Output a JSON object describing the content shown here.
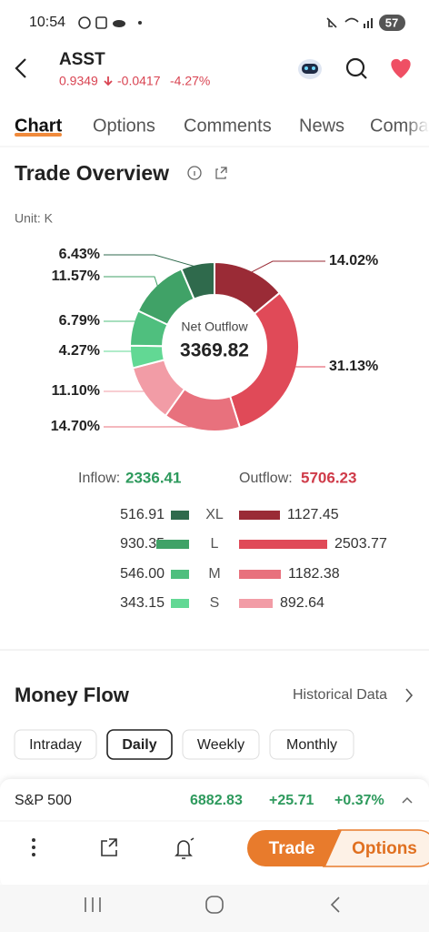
{
  "status_bar": {
    "time": "10:54",
    "battery": "57"
  },
  "header": {
    "symbol": "ASST",
    "price": "0.9349",
    "change": "-0.0417",
    "change_pct": "-4.27%"
  },
  "tabs": [
    "Chart",
    "Options",
    "Comments",
    "News",
    "Compa"
  ],
  "trade_overview": {
    "title": "Trade Overview",
    "unit": "Unit: K",
    "inflow_label": "Inflow:",
    "inflow_total": "2336.41",
    "outflow_label": "Outflow:",
    "outflow_total": "5706.23",
    "sizes": [
      "XL",
      "L",
      "M",
      "S"
    ],
    "inflow": [
      "516.91",
      "930.35",
      "546.00",
      "343.15"
    ],
    "outflow": [
      "1127.45",
      "2503.77",
      "1182.38",
      "892.64"
    ]
  },
  "chart_data": {
    "type": "donut",
    "center_label": "Net Outflow",
    "center_value": 3369.82,
    "values": [
      14.02,
      31.13,
      14.7,
      11.1,
      4.27,
      6.79,
      11.57,
      6.43
    ],
    "value_labels": [
      "14.02%",
      "31.13%",
      "14.70%",
      "11.10%",
      "4.27%",
      "6.79%",
      "11.57%",
      "6.43%"
    ],
    "colors": [
      "#9a2b36",
      "#e04a58",
      "#e8717d",
      "#f29ca6",
      "#62d894",
      "#4fbf7e",
      "#40a267",
      "#2f6a4c"
    ]
  },
  "money_flow": {
    "title": "Money Flow",
    "link": "Historical Data",
    "periods": [
      "Intraday",
      "Daily",
      "Weekly",
      "Monthly"
    ],
    "selected": 1
  },
  "index_bar": {
    "name": "S&P 500",
    "value": "6882.83",
    "change": "+25.71",
    "change_pct": "+0.37%"
  },
  "toolbar": {
    "trade": "Trade",
    "options": "Options"
  }
}
